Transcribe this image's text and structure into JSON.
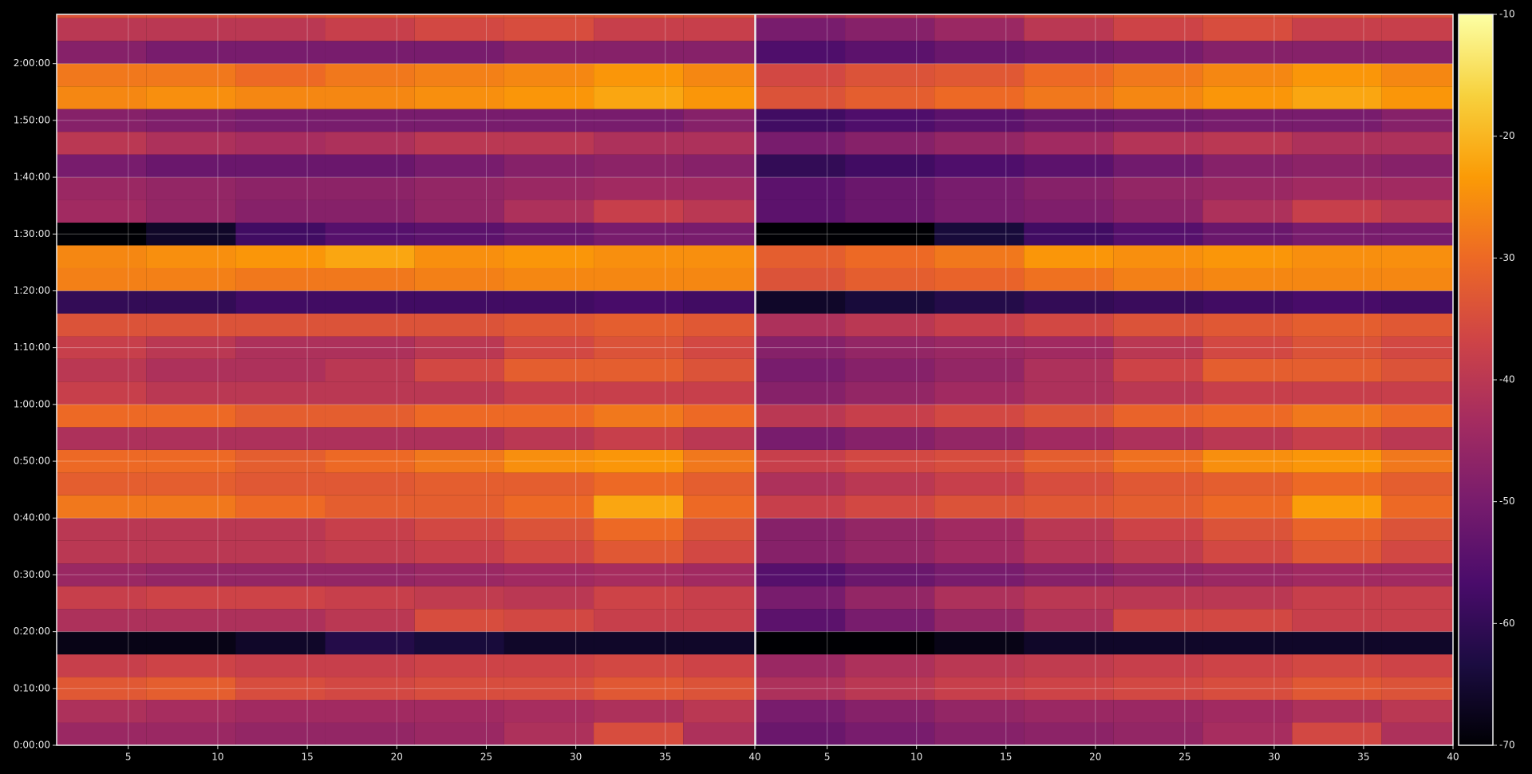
{
  "chart_data": {
    "type": "heatmap",
    "grid": true,
    "xlim": [
      1,
      40
    ],
    "xticks": [
      5,
      10,
      15,
      20,
      25,
      30,
      35,
      40
    ],
    "ylim": [
      0,
      7720
    ],
    "yticks": [
      {
        "value": 0,
        "label": "0:00:00"
      },
      {
        "value": 600,
        "label": "0:10:00"
      },
      {
        "value": 1200,
        "label": "0:20:00"
      },
      {
        "value": 1800,
        "label": "0:30:00"
      },
      {
        "value": 2400,
        "label": "0:40:00"
      },
      {
        "value": 3000,
        "label": "0:50:00"
      },
      {
        "value": 3600,
        "label": "1:00:00"
      },
      {
        "value": 4200,
        "label": "1:10:00"
      },
      {
        "value": 4800,
        "label": "1:20:00"
      },
      {
        "value": 5400,
        "label": "1:30:00"
      },
      {
        "value": 6000,
        "label": "1:40:00"
      },
      {
        "value": 6600,
        "label": "1:50:00"
      },
      {
        "value": 7200,
        "label": "2:00:00"
      }
    ],
    "zlim": [
      -70,
      -10
    ],
    "zticks": [
      -10,
      -20,
      -30,
      -40,
      -50,
      -60,
      -70
    ],
    "colormap": [
      "#000004",
      "#1b0c41",
      "#4a0c6b",
      "#781c6d",
      "#a52c60",
      "#cf4446",
      "#ed6925",
      "#fb9b06",
      "#f7d13d",
      "#fcffa4"
    ],
    "x_bins": [
      1,
      6,
      11,
      16,
      21,
      26,
      31,
      36,
      40
    ],
    "y_bins": [
      0,
      240,
      480,
      720,
      960,
      1200,
      1440,
      1680,
      1920,
      2160,
      2400,
      2640,
      2880,
      3120,
      3360,
      3600,
      3840,
      4080,
      4320,
      4560,
      4800,
      5040,
      5280,
      5520,
      5760,
      6000,
      6240,
      6480,
      6720,
      6960,
      7200,
      7440,
      7680,
      7720
    ],
    "panels": [
      {
        "values": [
          [
            -45,
            -45,
            -46,
            -46,
            -45,
            -42,
            -35,
            -42
          ],
          [
            -42,
            -43,
            -44,
            -44,
            -44,
            -43,
            -42,
            -40
          ],
          [
            -33,
            -32,
            -35,
            -36,
            -35,
            -35,
            -33,
            -34
          ],
          [
            -38,
            -37,
            -38,
            -38,
            -37,
            -37,
            -36,
            -37
          ],
          [
            -68,
            -68,
            -66,
            -62,
            -64,
            -66,
            -66,
            -66
          ],
          [
            -42,
            -42,
            -42,
            -40,
            -35,
            -36,
            -38,
            -38
          ],
          [
            -38,
            -37,
            -37,
            -38,
            -39,
            -40,
            -37,
            -38
          ],
          [
            -45,
            -46,
            -46,
            -46,
            -45,
            -44,
            -43,
            -44
          ],
          [
            -40,
            -40,
            -40,
            -39,
            -38,
            -36,
            -33,
            -36
          ],
          [
            -40,
            -40,
            -40,
            -38,
            -36,
            -34,
            -30,
            -34
          ],
          [
            -28,
            -28,
            -30,
            -32,
            -32,
            -30,
            -22,
            -30
          ],
          [
            -32,
            -32,
            -33,
            -33,
            -32,
            -32,
            -30,
            -32
          ],
          [
            -30,
            -30,
            -32,
            -30,
            -28,
            -25,
            -24,
            -28
          ],
          [
            -42,
            -42,
            -42,
            -42,
            -42,
            -40,
            -38,
            -40
          ],
          [
            -30,
            -30,
            -32,
            -32,
            -30,
            -30,
            -28,
            -30
          ],
          [
            -38,
            -40,
            -40,
            -40,
            -40,
            -38,
            -38,
            -38
          ],
          [
            -40,
            -42,
            -42,
            -40,
            -36,
            -32,
            -32,
            -34
          ],
          [
            -38,
            -40,
            -42,
            -42,
            -40,
            -36,
            -34,
            -36
          ],
          [
            -34,
            -34,
            -34,
            -34,
            -34,
            -33,
            -32,
            -33
          ],
          [
            -60,
            -60,
            -58,
            -58,
            -58,
            -58,
            -57,
            -58
          ],
          [
            -27,
            -27,
            -28,
            -28,
            -27,
            -26,
            -26,
            -26
          ],
          [
            -26,
            -25,
            -24,
            -22,
            -25,
            -24,
            -25,
            -25
          ],
          [
            -70,
            -66,
            -58,
            -55,
            -54,
            -52,
            -50,
            -50
          ],
          [
            -44,
            -46,
            -48,
            -48,
            -46,
            -42,
            -38,
            -40
          ],
          [
            -45,
            -46,
            -47,
            -47,
            -46,
            -45,
            -44,
            -44
          ],
          [
            -50,
            -52,
            -52,
            -52,
            -50,
            -48,
            -47,
            -48
          ],
          [
            -40,
            -42,
            -43,
            -42,
            -40,
            -40,
            -42,
            -42
          ],
          [
            -48,
            -49,
            -50,
            -50,
            -50,
            -50,
            -50,
            -48
          ],
          [
            -26,
            -25,
            -26,
            -26,
            -25,
            -24,
            -22,
            -24
          ],
          [
            -28,
            -28,
            -30,
            -28,
            -27,
            -26,
            -24,
            -26
          ],
          [
            -48,
            -50,
            -50,
            -50,
            -50,
            -48,
            -48,
            -48
          ],
          [
            -40,
            -40,
            -40,
            -38,
            -36,
            -35,
            -38,
            -38
          ],
          [
            -34,
            -34,
            -34,
            -33,
            -33,
            -33,
            -33,
            -34
          ]
        ]
      },
      {
        "values": [
          [
            -52,
            -50,
            -48,
            -47,
            -46,
            -43,
            -36,
            -42
          ],
          [
            -50,
            -48,
            -46,
            -45,
            -45,
            -44,
            -42,
            -40
          ],
          [
            -42,
            -40,
            -38,
            -37,
            -36,
            -35,
            -33,
            -34
          ],
          [
            -45,
            -42,
            -40,
            -39,
            -38,
            -37,
            -36,
            -37
          ],
          [
            -70,
            -70,
            -68,
            -66,
            -66,
            -66,
            -66,
            -66
          ],
          [
            -54,
            -50,
            -46,
            -42,
            -36,
            -36,
            -38,
            -38
          ],
          [
            -50,
            -46,
            -42,
            -40,
            -40,
            -40,
            -38,
            -38
          ],
          [
            -55,
            -52,
            -50,
            -48,
            -46,
            -45,
            -44,
            -44
          ],
          [
            -48,
            -46,
            -44,
            -41,
            -39,
            -36,
            -33,
            -36
          ],
          [
            -48,
            -46,
            -44,
            -40,
            -37,
            -34,
            -31,
            -34
          ],
          [
            -38,
            -36,
            -34,
            -33,
            -32,
            -30,
            -23,
            -30
          ],
          [
            -42,
            -40,
            -38,
            -35,
            -33,
            -32,
            -30,
            -32
          ],
          [
            -38,
            -36,
            -35,
            -32,
            -29,
            -25,
            -24,
            -28
          ],
          [
            -50,
            -48,
            -46,
            -44,
            -42,
            -40,
            -38,
            -40
          ],
          [
            -40,
            -38,
            -36,
            -34,
            -31,
            -30,
            -28,
            -30
          ],
          [
            -48,
            -46,
            -44,
            -42,
            -40,
            -38,
            -38,
            -38
          ],
          [
            -50,
            -48,
            -46,
            -42,
            -37,
            -32,
            -32,
            -34
          ],
          [
            -48,
            -46,
            -45,
            -44,
            -40,
            -36,
            -34,
            -36
          ],
          [
            -42,
            -40,
            -38,
            -36,
            -34,
            -33,
            -32,
            -33
          ],
          [
            -66,
            -64,
            -62,
            -60,
            -59,
            -58,
            -57,
            -58
          ],
          [
            -34,
            -32,
            -31,
            -29,
            -27,
            -26,
            -26,
            -26
          ],
          [
            -32,
            -30,
            -28,
            -24,
            -25,
            -24,
            -25,
            -25
          ],
          [
            -70,
            -70,
            -64,
            -58,
            -55,
            -52,
            -50,
            -50
          ],
          [
            -54,
            -52,
            -50,
            -49,
            -47,
            -42,
            -38,
            -40
          ],
          [
            -54,
            -52,
            -50,
            -48,
            -46,
            -45,
            -44,
            -44
          ],
          [
            -60,
            -58,
            -56,
            -54,
            -51,
            -48,
            -47,
            -48
          ],
          [
            -50,
            -48,
            -46,
            -44,
            -41,
            -40,
            -42,
            -42
          ],
          [
            -58,
            -56,
            -54,
            -52,
            -51,
            -50,
            -50,
            -48
          ],
          [
            -34,
            -32,
            -30,
            -28,
            -26,
            -24,
            -22,
            -24
          ],
          [
            -36,
            -34,
            -33,
            -30,
            -28,
            -26,
            -24,
            -26
          ],
          [
            -56,
            -54,
            -52,
            -51,
            -50,
            -48,
            -48,
            -48
          ],
          [
            -50,
            -48,
            -45,
            -40,
            -37,
            -35,
            -38,
            -38
          ],
          [
            -42,
            -40,
            -38,
            -35,
            -34,
            -33,
            -33,
            -34
          ]
        ]
      }
    ]
  }
}
